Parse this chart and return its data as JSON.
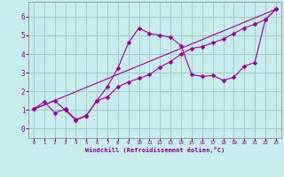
{
  "xlabel": "Windchill (Refroidissement éolien,°C)",
  "bg_color": "#c8ecec",
  "grid_color": "#a0c8c8",
  "line_color": "#990099",
  "xlim": [
    -0.5,
    23.5
  ],
  "ylim": [
    -0.5,
    6.8
  ],
  "xticks": [
    0,
    1,
    2,
    3,
    4,
    5,
    6,
    7,
    8,
    9,
    10,
    11,
    12,
    13,
    14,
    15,
    16,
    17,
    18,
    19,
    20,
    21,
    22,
    23
  ],
  "yticks": [
    0,
    1,
    2,
    3,
    4,
    5,
    6
  ],
  "line1_x": [
    0,
    1,
    2,
    3,
    4,
    5,
    6,
    7,
    8,
    9,
    10,
    11,
    12,
    13,
    14,
    15,
    16,
    17,
    18,
    19,
    20,
    21,
    22,
    23
  ],
  "line1_y": [
    1.05,
    1.45,
    0.85,
    1.05,
    0.5,
    0.7,
    1.5,
    1.7,
    2.25,
    2.5,
    2.7,
    2.9,
    3.3,
    3.6,
    4.0,
    4.3,
    4.4,
    4.6,
    4.8,
    5.1,
    5.4,
    5.6,
    5.85,
    6.4
  ],
  "line2_x": [
    0,
    23
  ],
  "line2_y": [
    1.05,
    6.4
  ],
  "line3_x": [
    0,
    2,
    3,
    4,
    5,
    6,
    7,
    8,
    9,
    10,
    11,
    12,
    13,
    14,
    15,
    16,
    17,
    18,
    19,
    20,
    21,
    22,
    23
  ],
  "line3_y": [
    1.05,
    1.5,
    1.0,
    0.45,
    0.7,
    1.5,
    2.25,
    3.25,
    4.6,
    5.4,
    5.1,
    5.0,
    4.9,
    4.45,
    2.9,
    2.8,
    2.85,
    2.6,
    2.75,
    3.35,
    3.55,
    5.85,
    6.4
  ],
  "markersize": 2.5
}
